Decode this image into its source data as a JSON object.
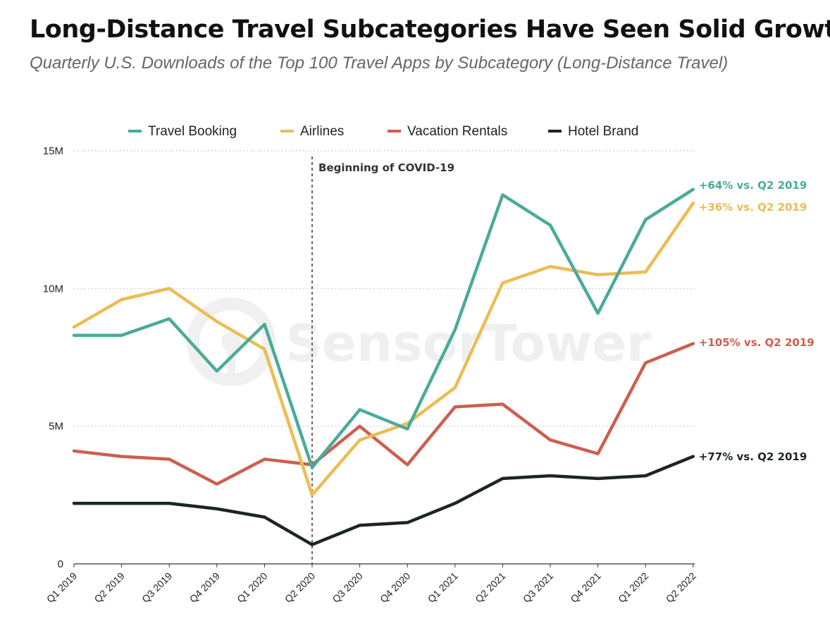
{
  "header": {
    "title": "Long-Distance Travel Subcategories Have Seen Solid Growth",
    "subtitle": "Quarterly U.S. Downloads of the Top 100 Travel Apps by Subcategory (Long-Distance Travel)"
  },
  "watermark": {
    "text": "SensorTower",
    "icon": "sensortower-logo-icon"
  },
  "colors": {
    "travel_booking": "#4aab9a",
    "airlines": "#ebbd52",
    "vacation_rentals": "#cc5f4f",
    "hotel_brand": "#1b2528",
    "grid": "#bbbbbb",
    "axis": "#333333",
    "covid_line": "#555555"
  },
  "chart_data": {
    "type": "line",
    "title": "Long-Distance Travel Subcategories Have Seen Solid Growth",
    "subtitle": "Quarterly U.S. Downloads of the Top 100 Travel Apps by Subcategory (Long-Distance Travel)",
    "categories": [
      "Q1 2019",
      "Q2 2019",
      "Q3 2019",
      "Q4 2019",
      "Q1 2020",
      "Q2 2020",
      "Q3 2020",
      "Q4 2020",
      "Q1 2021",
      "Q2 2021",
      "Q3 2021",
      "Q4 2021",
      "Q1 2022",
      "Q2 2022"
    ],
    "ylim": [
      0,
      15000000
    ],
    "yticks": [
      0,
      5000000,
      10000000,
      15000000
    ],
    "ytick_labels": [
      "0",
      "5M",
      "10M",
      "15M"
    ],
    "grid": "horizontal dotted",
    "legend_position": "top",
    "series": [
      {
        "key": "travel_booking",
        "name": "Travel Booking",
        "values": [
          8300000,
          8300000,
          8900000,
          7000000,
          8700000,
          3500000,
          5600000,
          4900000,
          8500000,
          13400000,
          12300000,
          9100000,
          12500000,
          13600000
        ],
        "end_label": "+64% vs. Q2 2019"
      },
      {
        "key": "airlines",
        "name": "Airlines",
        "values": [
          8600000,
          9600000,
          10000000,
          8800000,
          7800000,
          2500000,
          4500000,
          5100000,
          6400000,
          10200000,
          10800000,
          10500000,
          10600000,
          13100000
        ],
        "end_label": "+36% vs. Q2 2019"
      },
      {
        "key": "vacation_rentals",
        "name": "Vacation Rentals",
        "values": [
          4100000,
          3900000,
          3800000,
          2900000,
          3800000,
          3600000,
          5000000,
          3600000,
          5700000,
          5800000,
          4500000,
          4000000,
          7300000,
          8000000
        ],
        "end_label": "+105% vs. Q2 2019"
      },
      {
        "key": "hotel_brand",
        "name": "Hotel Brand",
        "values": [
          2200000,
          2200000,
          2200000,
          2000000,
          1700000,
          700000,
          1400000,
          1500000,
          2200000,
          3100000,
          3200000,
          3100000,
          3200000,
          3900000
        ],
        "end_label": "+77% vs. Q2 2019"
      }
    ],
    "annotations": [
      {
        "category": "Q2 2020",
        "text": "Beginning of COVID-19"
      }
    ]
  }
}
